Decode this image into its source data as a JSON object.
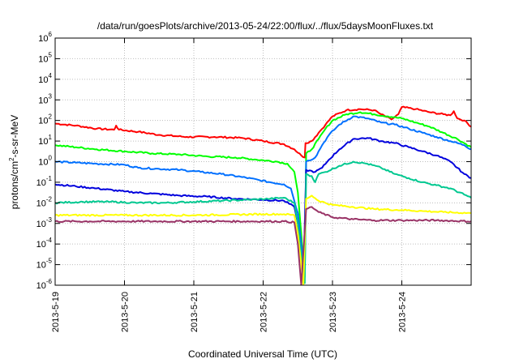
{
  "chart_data": {
    "type": "line",
    "title": "/data/run/goesPlots/archive/2013-05-24/22:00/flux/../flux/5daysMoonFluxes.txt",
    "xlabel": "Coordinated Universal Time (UTC)",
    "ylabel_parts": {
      "pre": "protons/cm",
      "sup": "2",
      "post": "-s-sr-MeV"
    },
    "yscale": "log",
    "ylim_exponent": [
      -6,
      6
    ],
    "ytick_base": "10",
    "yticks": [
      "-6",
      "-5",
      "-4",
      "-3",
      "-2",
      "-1",
      "0",
      "1",
      "2",
      "3",
      "4",
      "5",
      "6"
    ],
    "xticks": [
      "2013-5-19",
      "2013-5-20",
      "2013-5-21",
      "2013-5-22",
      "2013-5-23",
      "2013-5-24"
    ],
    "xlim_days": [
      0,
      6
    ],
    "grid": true,
    "series": [
      {
        "color": "#ff0000",
        "points": [
          [
            0,
            1.85
          ],
          [
            0.3,
            1.75
          ],
          [
            0.6,
            1.6
          ],
          [
            0.85,
            1.55
          ],
          [
            0.88,
            1.75
          ],
          [
            0.92,
            1.55
          ],
          [
            1.2,
            1.45
          ],
          [
            1.5,
            1.3
          ],
          [
            1.9,
            1.2
          ],
          [
            2.3,
            1.2
          ],
          [
            2.7,
            1.15
          ],
          [
            3.0,
            1.0
          ],
          [
            3.3,
            0.85
          ],
          [
            3.45,
            0.6
          ],
          [
            3.55,
            0.3
          ],
          [
            3.6,
            0.2
          ],
          [
            3.61,
            0.9
          ],
          [
            3.7,
            1.0
          ],
          [
            3.8,
            1.4
          ],
          [
            3.9,
            1.8
          ],
          [
            4.0,
            2.2
          ],
          [
            4.2,
            2.5
          ],
          [
            4.4,
            2.55
          ],
          [
            4.6,
            2.5
          ],
          [
            4.7,
            2.3
          ],
          [
            4.85,
            2.05
          ],
          [
            4.95,
            2.3
          ],
          [
            5.0,
            2.65
          ],
          [
            5.2,
            2.55
          ],
          [
            5.4,
            2.4
          ],
          [
            5.6,
            2.3
          ],
          [
            5.7,
            2.25
          ],
          [
            5.75,
            2.45
          ],
          [
            5.8,
            2.1
          ],
          [
            5.9,
            2.0
          ],
          [
            6.0,
            1.7
          ]
        ]
      },
      {
        "color": "#00ff00",
        "points": [
          [
            0,
            0.8
          ],
          [
            0.3,
            0.7
          ],
          [
            0.6,
            0.6
          ],
          [
            1.0,
            0.5
          ],
          [
            1.4,
            0.4
          ],
          [
            1.8,
            0.35
          ],
          [
            2.2,
            0.25
          ],
          [
            2.6,
            0.2
          ],
          [
            2.9,
            0.1
          ],
          [
            3.2,
            0.0
          ],
          [
            3.35,
            -0.1
          ],
          [
            3.45,
            -0.5
          ],
          [
            3.5,
            -1.5
          ],
          [
            3.55,
            -3.5
          ],
          [
            3.58,
            -5.0
          ],
          [
            3.6,
            -5.6
          ],
          [
            3.62,
            0.4
          ],
          [
            3.7,
            0.6
          ],
          [
            3.8,
            1.1
          ],
          [
            3.9,
            1.6
          ],
          [
            4.0,
            2.0
          ],
          [
            4.2,
            2.3
          ],
          [
            4.4,
            2.4
          ],
          [
            4.6,
            2.3
          ],
          [
            4.8,
            2.2
          ],
          [
            5.0,
            2.1
          ],
          [
            5.2,
            1.9
          ],
          [
            5.4,
            1.7
          ],
          [
            5.6,
            1.4
          ],
          [
            5.8,
            1.1
          ],
          [
            6.0,
            0.7
          ]
        ]
      },
      {
        "color": "#0070ff",
        "points": [
          [
            0,
            0.0
          ],
          [
            0.3,
            -0.05
          ],
          [
            0.6,
            -0.1
          ],
          [
            1.0,
            -0.15
          ],
          [
            1.2,
            -0.3
          ],
          [
            1.5,
            -0.35
          ],
          [
            1.8,
            -0.4
          ],
          [
            2.1,
            -0.5
          ],
          [
            2.4,
            -0.6
          ],
          [
            2.7,
            -0.75
          ],
          [
            2.95,
            -0.9
          ],
          [
            3.1,
            -1.0
          ],
          [
            3.3,
            -1.1
          ],
          [
            3.4,
            -1.3
          ],
          [
            3.5,
            -2.5
          ],
          [
            3.55,
            -4.0
          ],
          [
            3.6,
            -5.5
          ],
          [
            3.62,
            0.0
          ],
          [
            3.75,
            0.2
          ],
          [
            3.85,
            0.8
          ],
          [
            3.95,
            1.3
          ],
          [
            4.1,
            1.8
          ],
          [
            4.3,
            2.2
          ],
          [
            4.5,
            2.1
          ],
          [
            4.7,
            1.9
          ],
          [
            4.9,
            1.8
          ],
          [
            5.1,
            1.6
          ],
          [
            5.3,
            1.4
          ],
          [
            5.5,
            1.2
          ],
          [
            5.7,
            1.0
          ],
          [
            5.9,
            0.8
          ],
          [
            6.0,
            0.6
          ]
        ]
      },
      {
        "color": "#0000dd",
        "points": [
          [
            0,
            -1.1
          ],
          [
            0.3,
            -1.2
          ],
          [
            0.6,
            -1.3
          ],
          [
            1.0,
            -1.45
          ],
          [
            1.4,
            -1.55
          ],
          [
            1.8,
            -1.65
          ],
          [
            2.2,
            -1.7
          ],
          [
            2.6,
            -1.8
          ],
          [
            3.0,
            -1.85
          ],
          [
            3.3,
            -1.9
          ],
          [
            3.45,
            -2.2
          ],
          [
            3.5,
            -3.0
          ],
          [
            3.55,
            -4.5
          ],
          [
            3.58,
            -5.7
          ],
          [
            3.62,
            -0.4
          ],
          [
            3.75,
            -0.5
          ],
          [
            3.85,
            -0.3
          ],
          [
            3.95,
            0.1
          ],
          [
            4.1,
            0.6
          ],
          [
            4.3,
            1.1
          ],
          [
            4.5,
            1.15
          ],
          [
            4.7,
            1.0
          ],
          [
            4.9,
            0.9
          ],
          [
            5.1,
            0.7
          ],
          [
            5.3,
            0.5
          ],
          [
            5.5,
            0.3
          ],
          [
            5.7,
            0.0
          ],
          [
            5.9,
            -0.6
          ],
          [
            6.0,
            -0.8
          ]
        ]
      },
      {
        "color": "#00c890",
        "points": [
          [
            0,
            -2.0
          ],
          [
            0.4,
            -1.95
          ],
          [
            0.8,
            -1.95
          ],
          [
            1.2,
            -2.0
          ],
          [
            1.6,
            -2.0
          ],
          [
            2.0,
            -1.95
          ],
          [
            2.4,
            -1.9
          ],
          [
            2.8,
            -1.85
          ],
          [
            3.1,
            -1.8
          ],
          [
            3.3,
            -1.75
          ],
          [
            3.45,
            -2.0
          ],
          [
            3.5,
            -3.0
          ],
          [
            3.55,
            -4.5
          ],
          [
            3.6,
            -5.9
          ],
          [
            3.62,
            -0.6
          ],
          [
            3.7,
            -0.7
          ],
          [
            3.75,
            -1.0
          ],
          [
            3.8,
            -0.6
          ],
          [
            3.9,
            -0.5
          ],
          [
            4.1,
            -0.2
          ],
          [
            4.3,
            0.0
          ],
          [
            4.5,
            -0.1
          ],
          [
            4.7,
            -0.3
          ],
          [
            4.9,
            -0.6
          ],
          [
            5.1,
            -0.8
          ],
          [
            5.3,
            -1.0
          ],
          [
            5.5,
            -1.15
          ],
          [
            5.7,
            -1.3
          ],
          [
            5.9,
            -1.6
          ],
          [
            6.0,
            -1.75
          ]
        ]
      },
      {
        "color": "#ffff00",
        "points": [
          [
            0,
            -2.6
          ],
          [
            1.0,
            -2.6
          ],
          [
            2.0,
            -2.6
          ],
          [
            3.0,
            -2.55
          ],
          [
            3.3,
            -2.55
          ],
          [
            3.45,
            -2.6
          ],
          [
            3.5,
            -3.5
          ],
          [
            3.55,
            -5.0
          ],
          [
            3.58,
            -6.0
          ],
          [
            3.62,
            -1.8
          ],
          [
            3.7,
            -1.65
          ],
          [
            3.8,
            -1.9
          ],
          [
            4.0,
            -2.1
          ],
          [
            4.3,
            -2.2
          ],
          [
            4.6,
            -2.3
          ],
          [
            5.0,
            -2.35
          ],
          [
            5.3,
            -2.4
          ],
          [
            5.6,
            -2.45
          ],
          [
            6.0,
            -2.5
          ]
        ]
      },
      {
        "color": "#993366",
        "points": [
          [
            0,
            -2.9
          ],
          [
            0.5,
            -2.9
          ],
          [
            1.0,
            -2.9
          ],
          [
            1.5,
            -2.9
          ],
          [
            2.0,
            -2.9
          ],
          [
            2.5,
            -2.9
          ],
          [
            3.0,
            -2.9
          ],
          [
            3.3,
            -2.9
          ],
          [
            3.45,
            -2.95
          ],
          [
            3.5,
            -4.0
          ],
          [
            3.55,
            -6.0
          ],
          [
            3.62,
            -2.3
          ],
          [
            3.7,
            -2.2
          ],
          [
            3.8,
            -2.45
          ],
          [
            4.0,
            -2.7
          ],
          [
            4.3,
            -2.8
          ],
          [
            4.6,
            -2.85
          ],
          [
            5.0,
            -2.85
          ],
          [
            5.5,
            -2.85
          ],
          [
            6.0,
            -2.9
          ]
        ]
      }
    ]
  }
}
